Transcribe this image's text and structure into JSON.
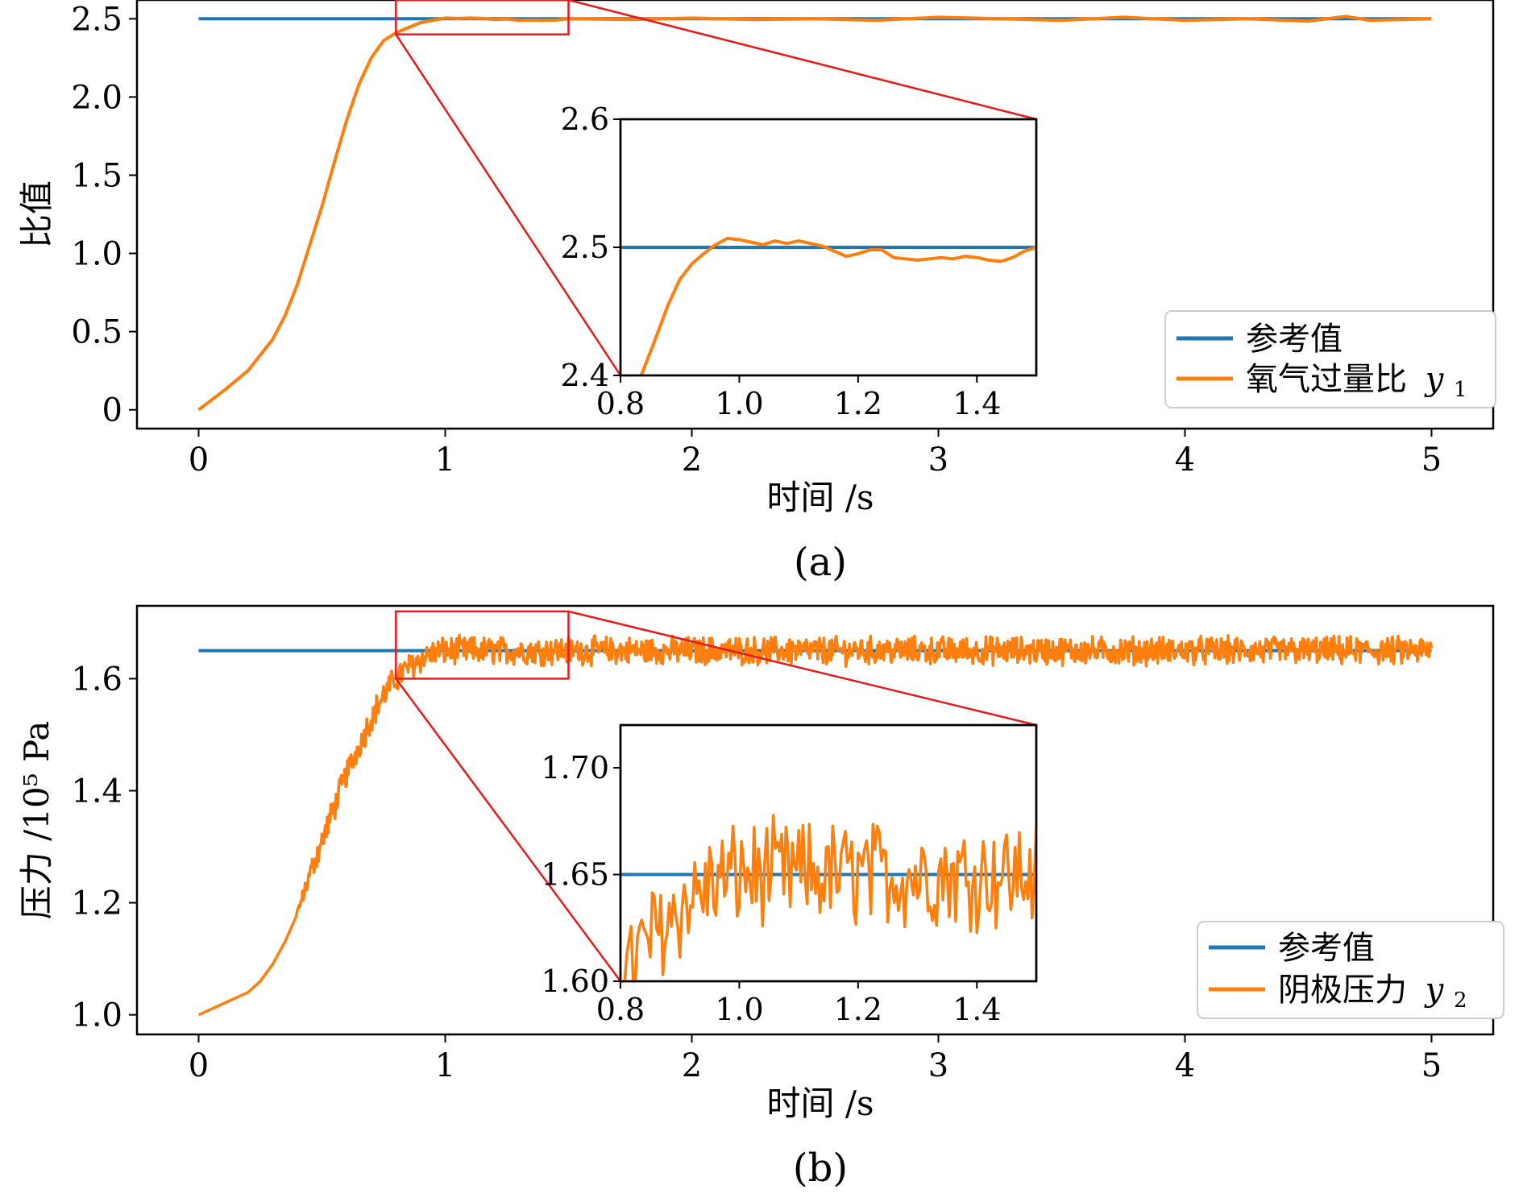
{
  "chart_data": [
    {
      "id": "a",
      "type": "line",
      "panel_label": "(a)",
      "xlabel": "时间 /s",
      "ylabel": "比值",
      "xlim": [
        -0.25,
        5.25
      ],
      "ylim": [
        -0.12,
        2.62
      ],
      "xticks": [
        0,
        1,
        2,
        3,
        4,
        5
      ],
      "xtick_labels": [
        "0",
        "1",
        "2",
        "3",
        "4",
        "5"
      ],
      "yticks": [
        0,
        0.5,
        1.0,
        1.5,
        2.0,
        2.5
      ],
      "ytick_labels": [
        "0",
        "0.5",
        "1.0",
        "1.5",
        "2.0",
        "2.5"
      ],
      "legend_position": "lower-right",
      "series": [
        {
          "name": "参考值",
          "color": "#1f77b4",
          "x": [
            0,
            5
          ],
          "y": [
            2.5,
            2.5
          ]
        },
        {
          "name": "氧气过量比",
          "name_symbol": "y",
          "name_subscript": "1",
          "color": "#ff7f0e",
          "x": [
            0,
            0.1,
            0.2,
            0.3,
            0.35,
            0.4,
            0.45,
            0.5,
            0.55,
            0.6,
            0.65,
            0.7,
            0.75,
            0.8,
            0.85,
            0.9,
            0.95,
            1.0,
            1.05,
            1.1,
            1.15,
            1.2,
            1.25,
            1.3,
            1.35,
            1.4,
            1.45,
            1.5,
            1.75,
            2.0,
            2.25,
            2.5,
            2.75,
            3.0,
            3.25,
            3.5,
            3.75,
            4.0,
            4.25,
            4.5,
            4.65,
            4.75,
            5.0
          ],
          "y": [
            0.0,
            0.12,
            0.25,
            0.45,
            0.6,
            0.8,
            1.05,
            1.3,
            1.58,
            1.85,
            2.08,
            2.25,
            2.36,
            2.41,
            2.443,
            2.475,
            2.49,
            2.505,
            2.502,
            2.505,
            2.503,
            2.495,
            2.498,
            2.49,
            2.492,
            2.49,
            2.492,
            2.5,
            2.495,
            2.505,
            2.495,
            2.5,
            2.49,
            2.51,
            2.5,
            2.49,
            2.51,
            2.49,
            2.5,
            2.485,
            2.515,
            2.49,
            2.5
          ]
        }
      ],
      "inset": {
        "xlim": [
          0.8,
          1.5
        ],
        "ylim": [
          2.4,
          2.6
        ],
        "xticks": [
          0.8,
          1.0,
          1.2,
          1.4
        ],
        "xtick_labels": [
          "0.8",
          "1.0",
          "1.2",
          "1.4"
        ],
        "yticks": [
          2.4,
          2.5,
          2.6
        ],
        "ytick_labels": [
          "2.4",
          "2.5",
          "2.6"
        ],
        "zoom_box": {
          "x": [
            0.8,
            1.5
          ],
          "y": [
            2.4,
            2.62
          ]
        },
        "series_orange": {
          "x": [
            0.835,
            0.86,
            0.88,
            0.9,
            0.92,
            0.94,
            0.96,
            0.98,
            1.0,
            1.02,
            1.04,
            1.06,
            1.08,
            1.1,
            1.12,
            1.14,
            1.16,
            1.18,
            1.2,
            1.22,
            1.24,
            1.26,
            1.28,
            1.3,
            1.32,
            1.34,
            1.36,
            1.38,
            1.4,
            1.42,
            1.44,
            1.46,
            1.48,
            1.5
          ],
          "y": [
            2.4,
            2.43,
            2.455,
            2.475,
            2.487,
            2.495,
            2.502,
            2.507,
            2.506,
            2.504,
            2.502,
            2.505,
            2.503,
            2.505,
            2.503,
            2.501,
            2.497,
            2.493,
            2.495,
            2.498,
            2.498,
            2.492,
            2.491,
            2.49,
            2.491,
            2.492,
            2.491,
            2.493,
            2.492,
            2.49,
            2.489,
            2.492,
            2.497,
            2.5
          ]
        }
      }
    },
    {
      "id": "b",
      "type": "line",
      "panel_label": "(b)",
      "xlabel": "时间 /s",
      "ylabel": "压力 /10⁵ Pa",
      "xlim": [
        -0.25,
        5.25
      ],
      "ylim": [
        0.965,
        1.73
      ],
      "xticks": [
        0,
        1,
        2,
        3,
        4,
        5
      ],
      "xtick_labels": [
        "0",
        "1",
        "2",
        "3",
        "4",
        "5"
      ],
      "yticks": [
        1.0,
        1.2,
        1.4,
        1.6
      ],
      "ytick_labels": [
        "1.0",
        "1.2",
        "1.4",
        "1.6"
      ],
      "legend_position": "lower-right",
      "series": [
        {
          "name": "参考值",
          "color": "#1f77b4",
          "x": [
            0,
            5
          ],
          "y": [
            1.65,
            1.65
          ]
        },
        {
          "name": "阴极压力",
          "name_symbol": "y",
          "name_subscript": "2",
          "color": "#ff7f0e",
          "trend_x": [
            0,
            0.1,
            0.2,
            0.25,
            0.3,
            0.35,
            0.4,
            0.45,
            0.5,
            0.55,
            0.6,
            0.65,
            0.7,
            0.75,
            0.8,
            0.85,
            0.9,
            0.95,
            1.0,
            5.0
          ],
          "trend_y": [
            1.0,
            1.02,
            1.04,
            1.06,
            1.09,
            1.13,
            1.18,
            1.25,
            1.31,
            1.37,
            1.43,
            1.48,
            1.53,
            1.57,
            1.6,
            1.62,
            1.635,
            1.645,
            1.65,
            1.65
          ],
          "noise_amplitude": 0.022,
          "noise_start": 0.4
        }
      ],
      "inset": {
        "xlim": [
          0.8,
          1.5
        ],
        "ylim": [
          1.6,
          1.72
        ],
        "xticks": [
          0.8,
          1.0,
          1.2,
          1.4
        ],
        "xtick_labels": [
          "0.8",
          "1.0",
          "1.2",
          "1.4"
        ],
        "yticks": [
          1.6,
          1.65,
          1.7
        ],
        "ytick_labels": [
          "1.60",
          "1.65",
          "1.70"
        ],
        "zoom_box": {
          "x": [
            0.8,
            1.5
          ],
          "y": [
            1.6,
            1.72
          ]
        }
      }
    }
  ]
}
